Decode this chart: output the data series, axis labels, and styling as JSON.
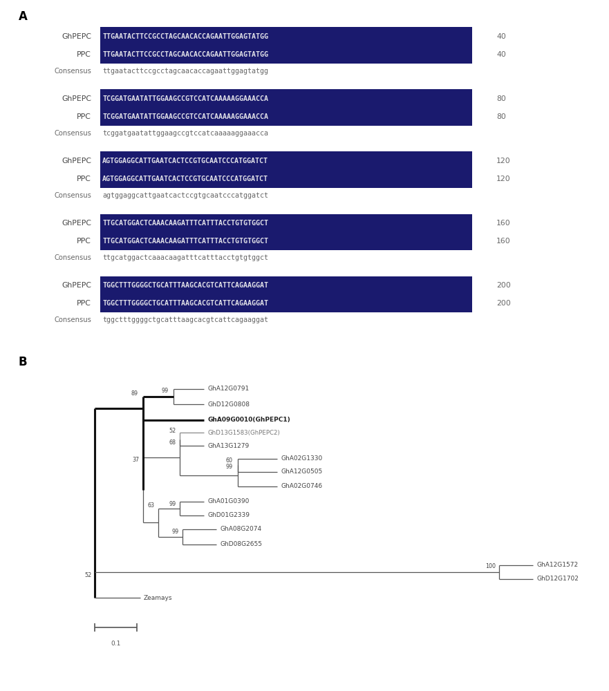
{
  "panel_A_label": "A",
  "panel_B_label": "B",
  "seq_blocks": [
    {
      "ghpepc": "TTGAATACTTCCGCCTAGCAACACCAGAATTGGAGTATGG",
      "ppc": "TTGAATACTTCCGCCTAGCAACACCAGAATTGGAGTATGG",
      "cons": "ttgaatacttccgcctagcaacaccagaattggagtatgg",
      "num": 40
    },
    {
      "ghpepc": "TCGGATGAATATTGGAAGCCGTCCATCAAAAAGGAAACCA",
      "ppc": "TCGGATGAATATTGGAAGCCGTCCATCAAAAAGGAAACCA",
      "cons": "tcggatgaatattggaagccgtccatcaaaaaggaaacca",
      "num": 80
    },
    {
      "ghpepc": "AGTGGAGGCATTGAATCACTCCGTGCAATCCCATGGATCT",
      "ppc": "AGTGGAGGCATTGAATCACTCCGTGCAATCCCATGGATCT",
      "cons": "agtggaggcattgaatcactccgtgcaatcccatggatct",
      "num": 120
    },
    {
      "ghpepc": "TTGCATGGACTCAAACAAGATTTCATTTACCTGTGTGGCT",
      "ppc": "TTGCATGGACTCAAACAAGATTTCATTTACCTGTGTGGCT",
      "cons": "ttgcatggactcaaacaagatttcatttacctgtgtggct",
      "num": 160
    },
    {
      "ghpepc": "TGGCTTTGGGGCTGCATTTAAGCACGTCATTCAGAAGGAT",
      "ppc": "TGGCTTTGGGGCTGCATTTAAGCACGTCATTCAGAAGGAT",
      "cons": "tggctttggggctgcatttaagcacgtcattcagaaggat",
      "num": 200
    }
  ],
  "seq_bg_color": "#1a1a6e",
  "seq_text_color": "#e0e0e8",
  "seq_label_color": "#444444",
  "cons_text_color": "#666666",
  "num_color": "#666666",
  "background_color": "#ffffff",
  "fig_width": 8.81,
  "fig_height": 10.0
}
